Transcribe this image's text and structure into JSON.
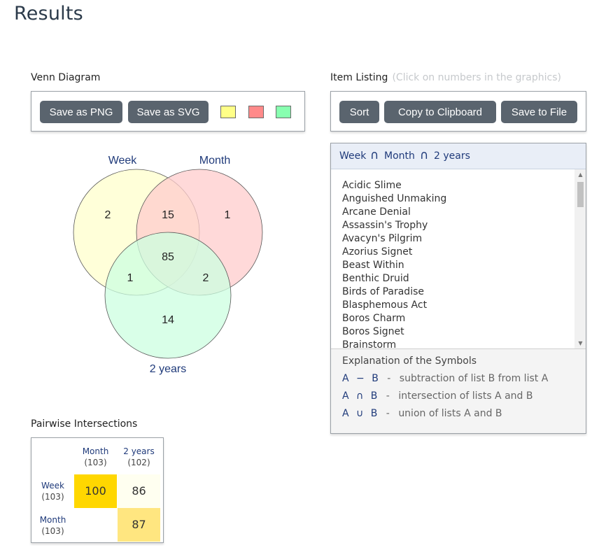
{
  "page": {
    "title": "Results"
  },
  "venn": {
    "section_title": "Venn Diagram",
    "buttons": {
      "save_png": "Save as PNG",
      "save_svg": "Save as SVG"
    },
    "swatches": [
      {
        "color": "#ffff88",
        "name": "yellow-swatch"
      },
      {
        "color": "#ff8a8a",
        "name": "red-swatch"
      },
      {
        "color": "#88ffb0",
        "name": "green-swatch"
      }
    ],
    "sets": {
      "a": "Week",
      "b": "Month",
      "c": "2 years"
    },
    "regions": {
      "a_only": "2",
      "ab": "15",
      "b_only": "1",
      "abc": "85",
      "ac": "1",
      "bc": "2",
      "c_only": "14"
    },
    "colors": {
      "a": "#ffffcc",
      "b": "#ffcccc",
      "c": "#ccffe0"
    }
  },
  "listing": {
    "section_title": "Item Listing",
    "hint": "(Click on numbers in the graphics)",
    "buttons": {
      "sort": "Sort",
      "copy": "Copy to Clipboard",
      "save": "Save to File"
    },
    "header": {
      "a": "Week",
      "op1": "∩",
      "b": "Month",
      "op2": "∩",
      "c": "2 years"
    },
    "items": [
      "Acidic Slime",
      "Anguished Unmaking",
      "Arcane Denial",
      "Assassin's Trophy",
      "Avacyn's Pilgrim",
      "Azorius Signet",
      "Beast Within",
      "Benthic Druid",
      "Birds of Paradise",
      "Blasphemous Act",
      "Boros Charm",
      "Boros Signet",
      "Brainstorm"
    ],
    "explanation": {
      "title": "Explanation of the Symbols",
      "rows": [
        {
          "sym_a": "A",
          "op": "−",
          "sym_b": "B",
          "dash": "-",
          "text": "subtraction of list B from list A"
        },
        {
          "sym_a": "A",
          "op": "∩",
          "sym_b": "B",
          "dash": "-",
          "text": "intersection of lists A and B"
        },
        {
          "sym_a": "A",
          "op": "∪",
          "sym_b": "B",
          "dash": "-",
          "text": "union of lists A and B"
        }
      ]
    }
  },
  "pairwise": {
    "section_title": "Pairwise Intersections",
    "columns": [
      {
        "label": "Month",
        "count": "(103)"
      },
      {
        "label": "2 years",
        "count": "(102)"
      }
    ],
    "rows": [
      {
        "label": "Week",
        "count": "(103)",
        "cells": [
          "100",
          "86"
        ]
      },
      {
        "label": "Month",
        "count": "(103)",
        "cells": [
          "",
          "87"
        ]
      }
    ],
    "cell_colors": {
      "high": "#ffd700",
      "mid": "#ffe680",
      "low": "#fffff0"
    }
  }
}
